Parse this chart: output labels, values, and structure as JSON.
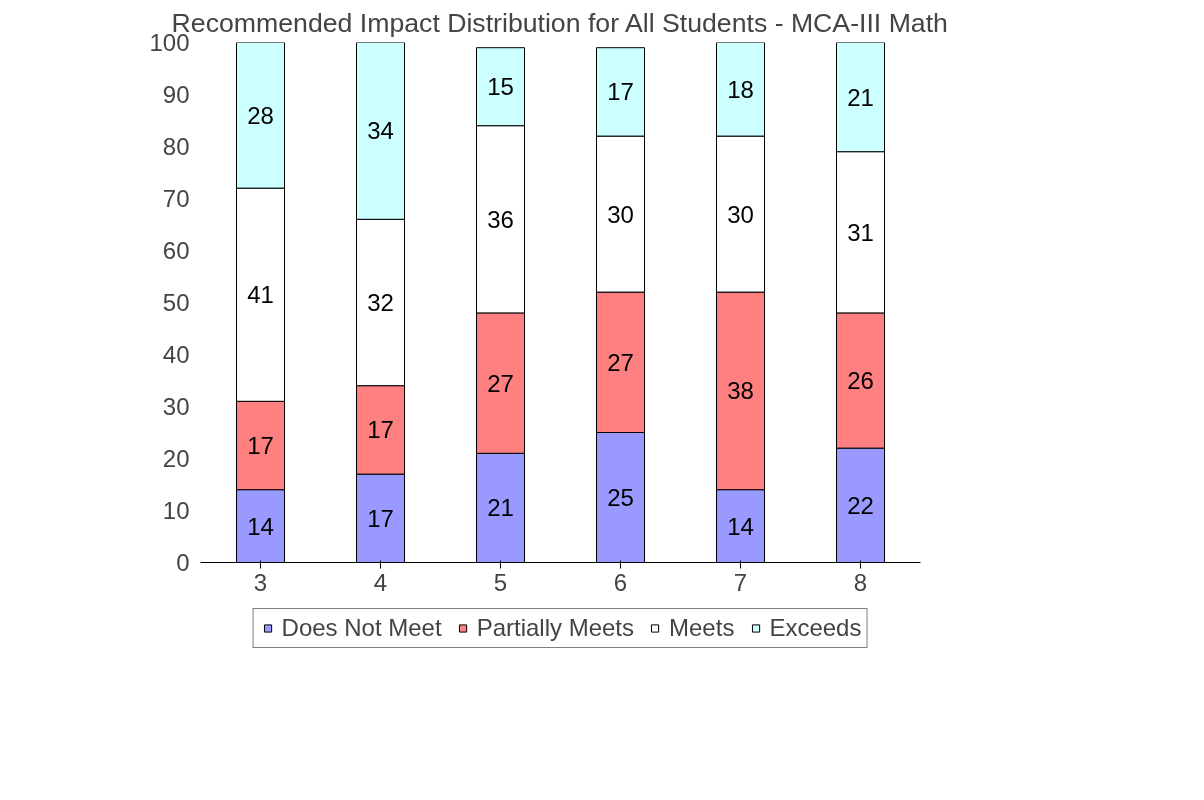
{
  "chart_data": {
    "type": "bar",
    "title": "Recommended Impact Distribution for All Students - MCA-III Math",
    "categories": [
      "3",
      "4",
      "5",
      "6",
      "7",
      "8"
    ],
    "stacked": true,
    "data_labels": true,
    "legend": "bottom",
    "grid": false,
    "ylim": [
      0,
      100
    ],
    "yticks": [
      0,
      10,
      20,
      30,
      40,
      50,
      60,
      70,
      80,
      90,
      100
    ],
    "series": [
      {
        "name": "Does Not Meet",
        "color": "#9999ff",
        "values": [
          14,
          17,
          21,
          25,
          14,
          22
        ]
      },
      {
        "name": "Partially Meets",
        "color": "#ff8080",
        "values": [
          17,
          17,
          27,
          27,
          38,
          26
        ]
      },
      {
        "name": "Meets",
        "color": "#ffffff",
        "values": [
          41,
          32,
          36,
          30,
          30,
          31
        ]
      },
      {
        "name": "Exceeds",
        "color": "#ccffff",
        "values": [
          28,
          34,
          15,
          17,
          18,
          21
        ]
      }
    ]
  }
}
